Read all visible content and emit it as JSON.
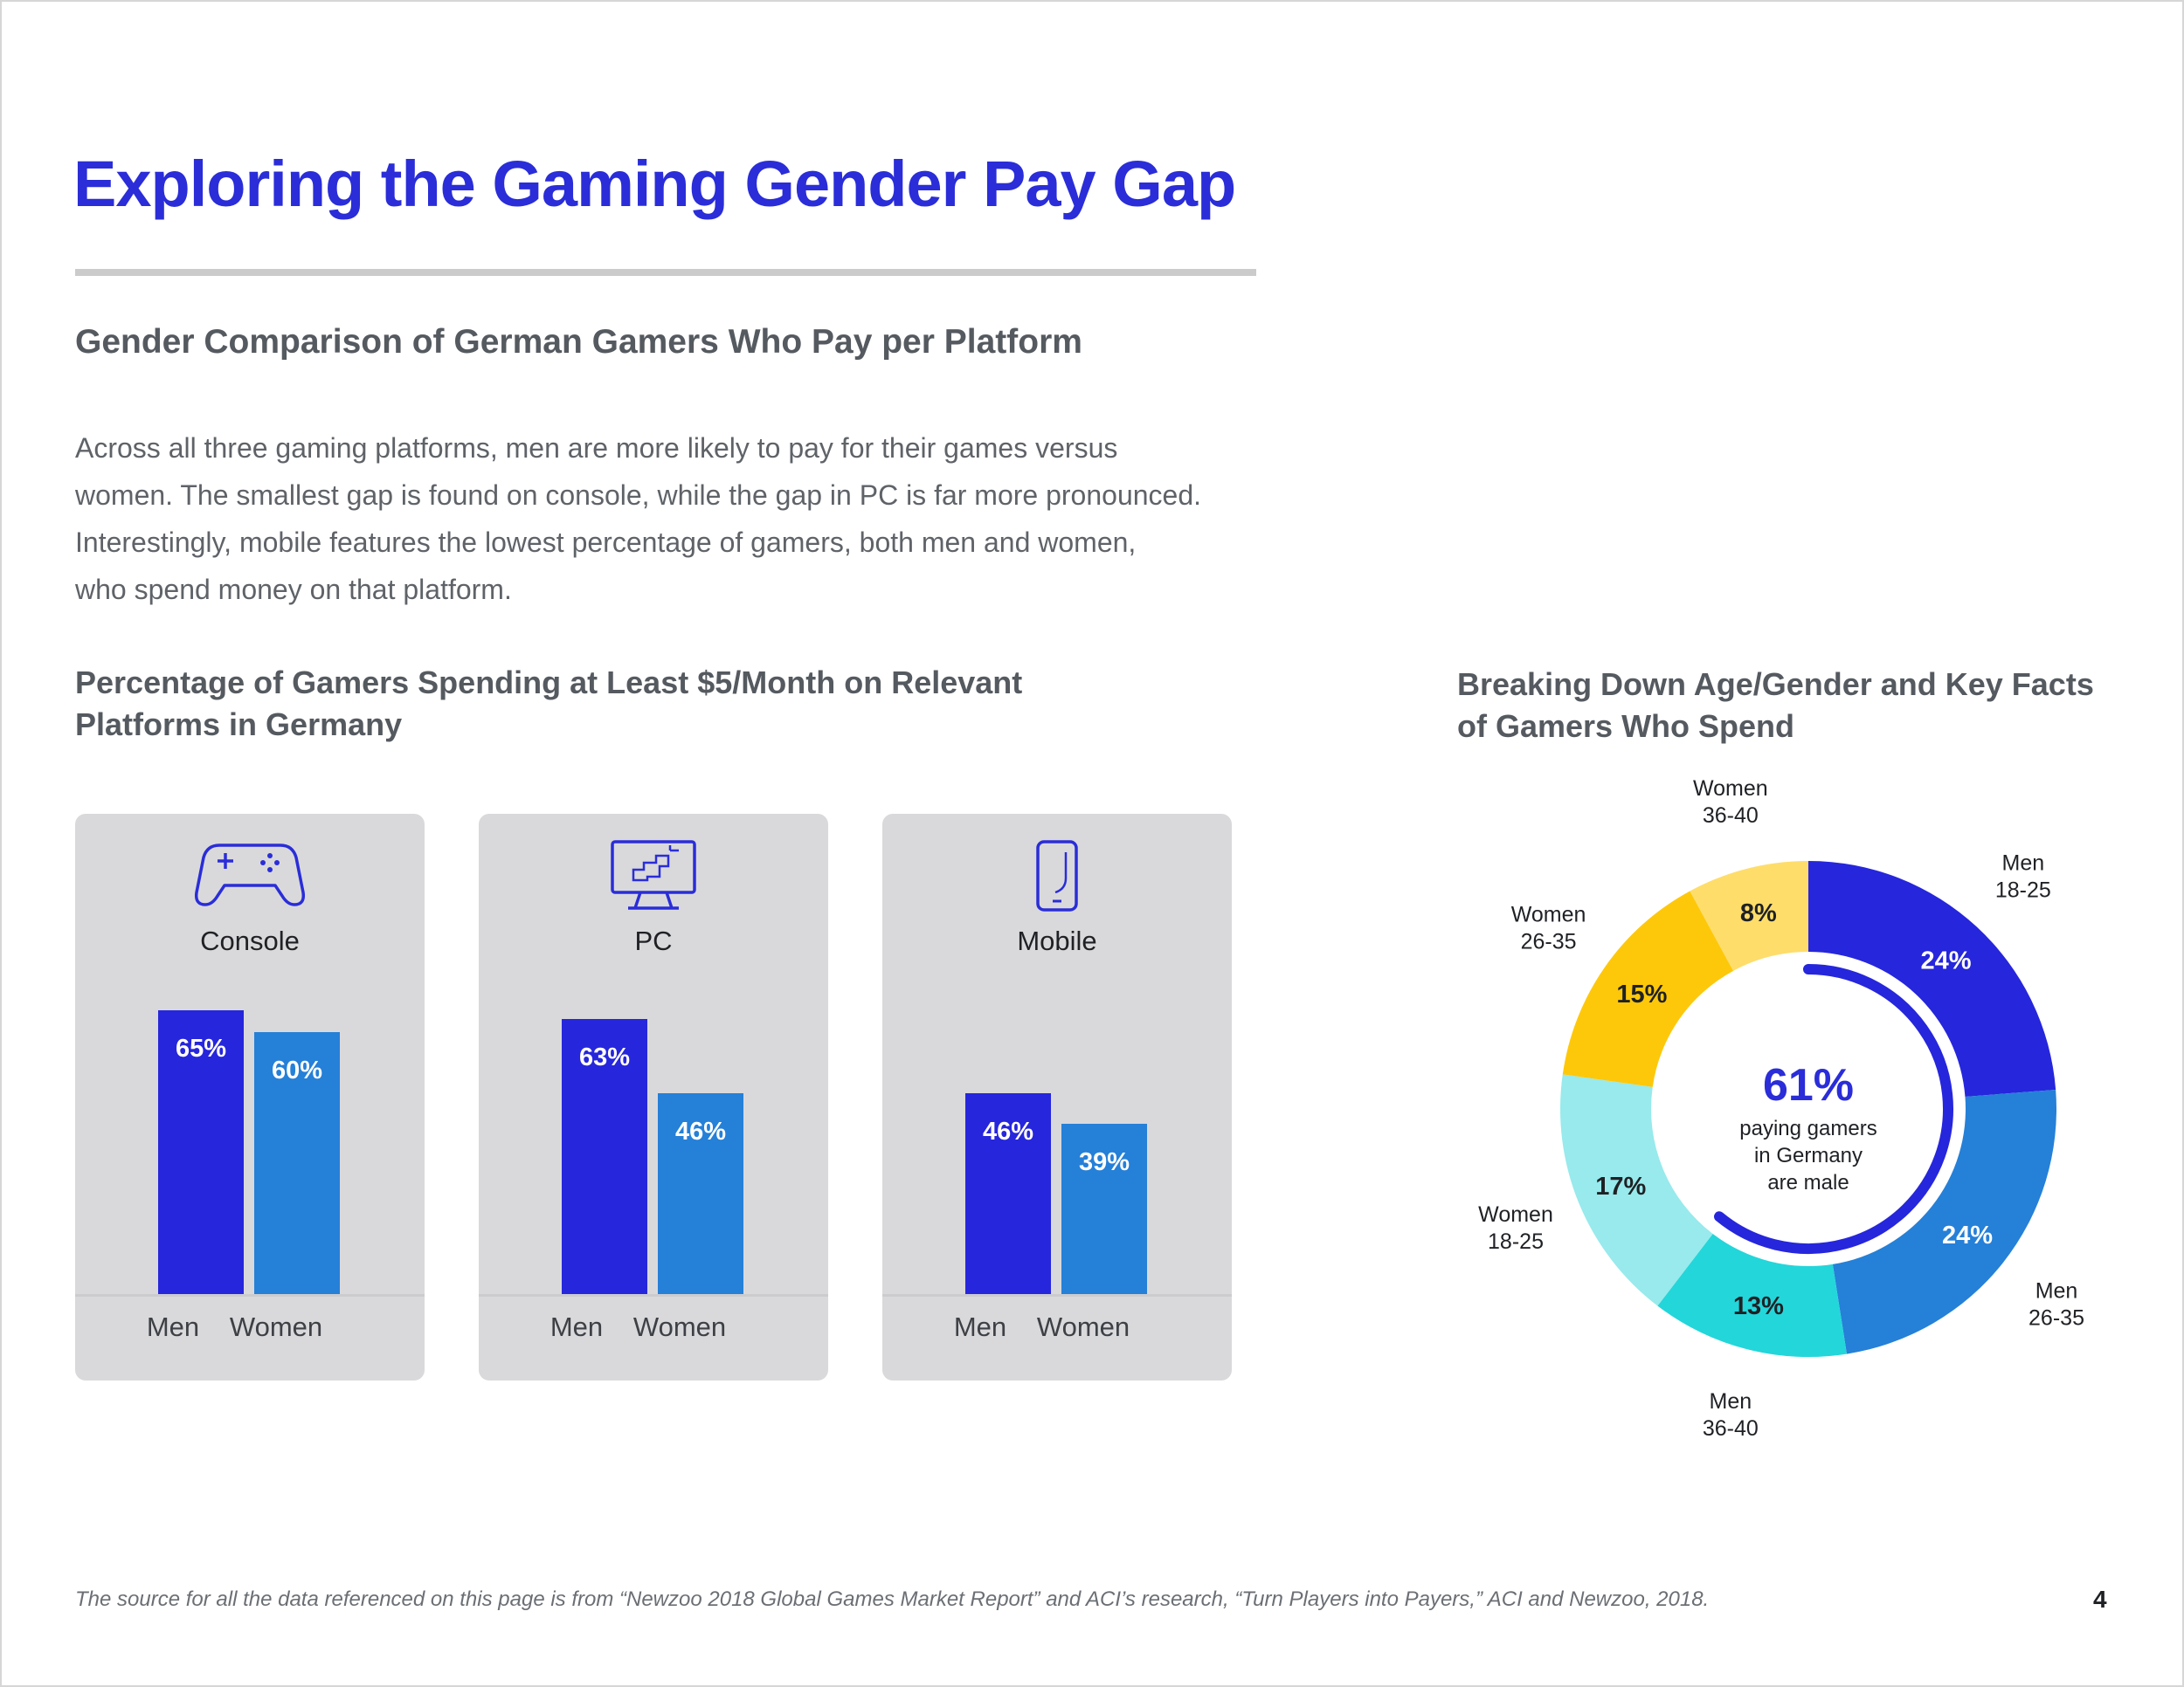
{
  "title": "Exploring the Gaming Gender Pay Gap",
  "subtitle": "Gender Comparison of German Gamers Who Pay per Platform",
  "body_lines": [
    "Across all three gaming platforms, men are more likely to pay for their games versus",
    "women. The smallest gap is found on console, while the gap in PC is far more pronounced.",
    "Interestingly, mobile features the lowest percentage of gamers, both men and women,",
    "who spend money on that platform."
  ],
  "footer": "The source for all the data referenced on this page is from “Newzoo 2018 Global Games Market Report” and ACI’s research, “Turn Players into Payers,” ACI and Newzoo, 2018.",
  "page_number": "4",
  "colors": {
    "accent": "#2a2dd8",
    "men_bar": "#2626dc",
    "women_bar": "#2580d8",
    "panel": "#d9d9db"
  },
  "chart_data": [
    {
      "type": "bar",
      "title_lines": [
        "Percentage of Gamers Spending at Least $5/Month on Relevant",
        "Platforms in Germany"
      ],
      "ylim": [
        0,
        100
      ],
      "panels": [
        {
          "platform": "Console",
          "icon": "gamepad-icon",
          "categories": [
            "Men",
            "Women"
          ],
          "values": [
            65,
            60
          ],
          "labels": [
            "65%",
            "60%"
          ]
        },
        {
          "platform": "PC",
          "icon": "desktop-computer-icon",
          "categories": [
            "Men",
            "Women"
          ],
          "values": [
            63,
            46
          ],
          "labels": [
            "63%",
            "46%"
          ]
        },
        {
          "platform": "Mobile",
          "icon": "smartphone-icon",
          "categories": [
            "Men",
            "Women"
          ],
          "values": [
            46,
            39
          ],
          "labels": [
            "46%",
            "39%"
          ]
        }
      ]
    },
    {
      "type": "pie",
      "title_lines": [
        "Breaking Down Age/Gender and Key Facts",
        "of Gamers Who Spend"
      ],
      "slices": [
        {
          "name_lines": [
            "Men",
            "18-25"
          ],
          "value": 24,
          "label": "24%",
          "color": "#2626dc"
        },
        {
          "name_lines": [
            "Men",
            "26-35"
          ],
          "value": 24,
          "label": "24%",
          "color": "#2580d8"
        },
        {
          "name_lines": [
            "Men",
            "36-40"
          ],
          "value": 13,
          "label": "13%",
          "color": "#23d6da"
        },
        {
          "name_lines": [
            "Women",
            "18-25"
          ],
          "value": 17,
          "label": "17%",
          "color": "#98eaec"
        },
        {
          "name_lines": [
            "Women",
            "26-35"
          ],
          "value": 15,
          "label": "15%",
          "color": "#fec80a"
        },
        {
          "name_lines": [
            "Women",
            "36-40"
          ],
          "value": 8,
          "label": "8%",
          "color": "#fedd6a"
        }
      ],
      "center": {
        "value": "61%",
        "fraction": 0.61,
        "text_lines": [
          "paying gamers",
          "in Germany",
          "are male"
        ]
      }
    }
  ]
}
